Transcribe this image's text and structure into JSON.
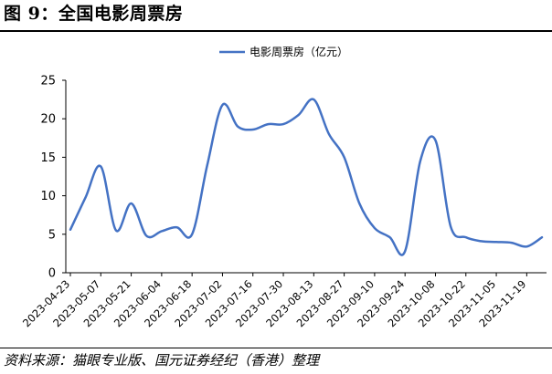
{
  "figure": {
    "title": "图 9：全国电影周票房",
    "source": "资料来源：猫眼专业版、国元证券经纪（香港）整理"
  },
  "chart_data": {
    "type": "line",
    "title": "",
    "xlabel": "",
    "ylabel": "",
    "ylim": [
      0,
      25
    ],
    "yticks": [
      0,
      5,
      10,
      15,
      20,
      25
    ],
    "xtick_labels": [
      "2023-04-23",
      "2023-05-07",
      "2023-05-21",
      "2023-06-04",
      "2023-06-18",
      "2023-07-02",
      "2023-07-16",
      "2023-07-30",
      "2023-08-13",
      "2023-08-27",
      "2023-09-10",
      "2023-09-24",
      "2023-10-08",
      "2023-10-22",
      "2023-11-05",
      "2023-11-19"
    ],
    "grid": false,
    "legend_position": "top",
    "series": [
      {
        "name": "电影周票房（亿元）",
        "color": "#4472C4",
        "points": [
          [
            "2023-04-23",
            5.6
          ],
          [
            "2023-04-30",
            9.8
          ],
          [
            "2023-05-07",
            13.8
          ],
          [
            "2023-05-14",
            5.5
          ],
          [
            "2023-05-21",
            9.0
          ],
          [
            "2023-05-28",
            4.8
          ],
          [
            "2023-06-04",
            5.4
          ],
          [
            "2023-06-11",
            5.9
          ],
          [
            "2023-06-18",
            5.0
          ],
          [
            "2023-06-25",
            14.0
          ],
          [
            "2023-07-02",
            21.8
          ],
          [
            "2023-07-09",
            19.0
          ],
          [
            "2023-07-16",
            18.6
          ],
          [
            "2023-07-23",
            19.3
          ],
          [
            "2023-07-30",
            19.3
          ],
          [
            "2023-08-06",
            20.5
          ],
          [
            "2023-08-13",
            22.5
          ],
          [
            "2023-08-20",
            18.0
          ],
          [
            "2023-08-27",
            15.0
          ],
          [
            "2023-09-03",
            9.0
          ],
          [
            "2023-09-10",
            5.8
          ],
          [
            "2023-09-17",
            4.6
          ],
          [
            "2023-09-24",
            2.8
          ],
          [
            "2023-10-01",
            14.5
          ],
          [
            "2023-10-08",
            17.2
          ],
          [
            "2023-10-15",
            6.0
          ],
          [
            "2023-10-22",
            4.6
          ],
          [
            "2023-10-29",
            4.1
          ],
          [
            "2023-11-05",
            4.0
          ],
          [
            "2023-11-12",
            3.9
          ],
          [
            "2023-11-19",
            3.4
          ],
          [
            "2023-11-26",
            4.6
          ]
        ]
      }
    ]
  }
}
